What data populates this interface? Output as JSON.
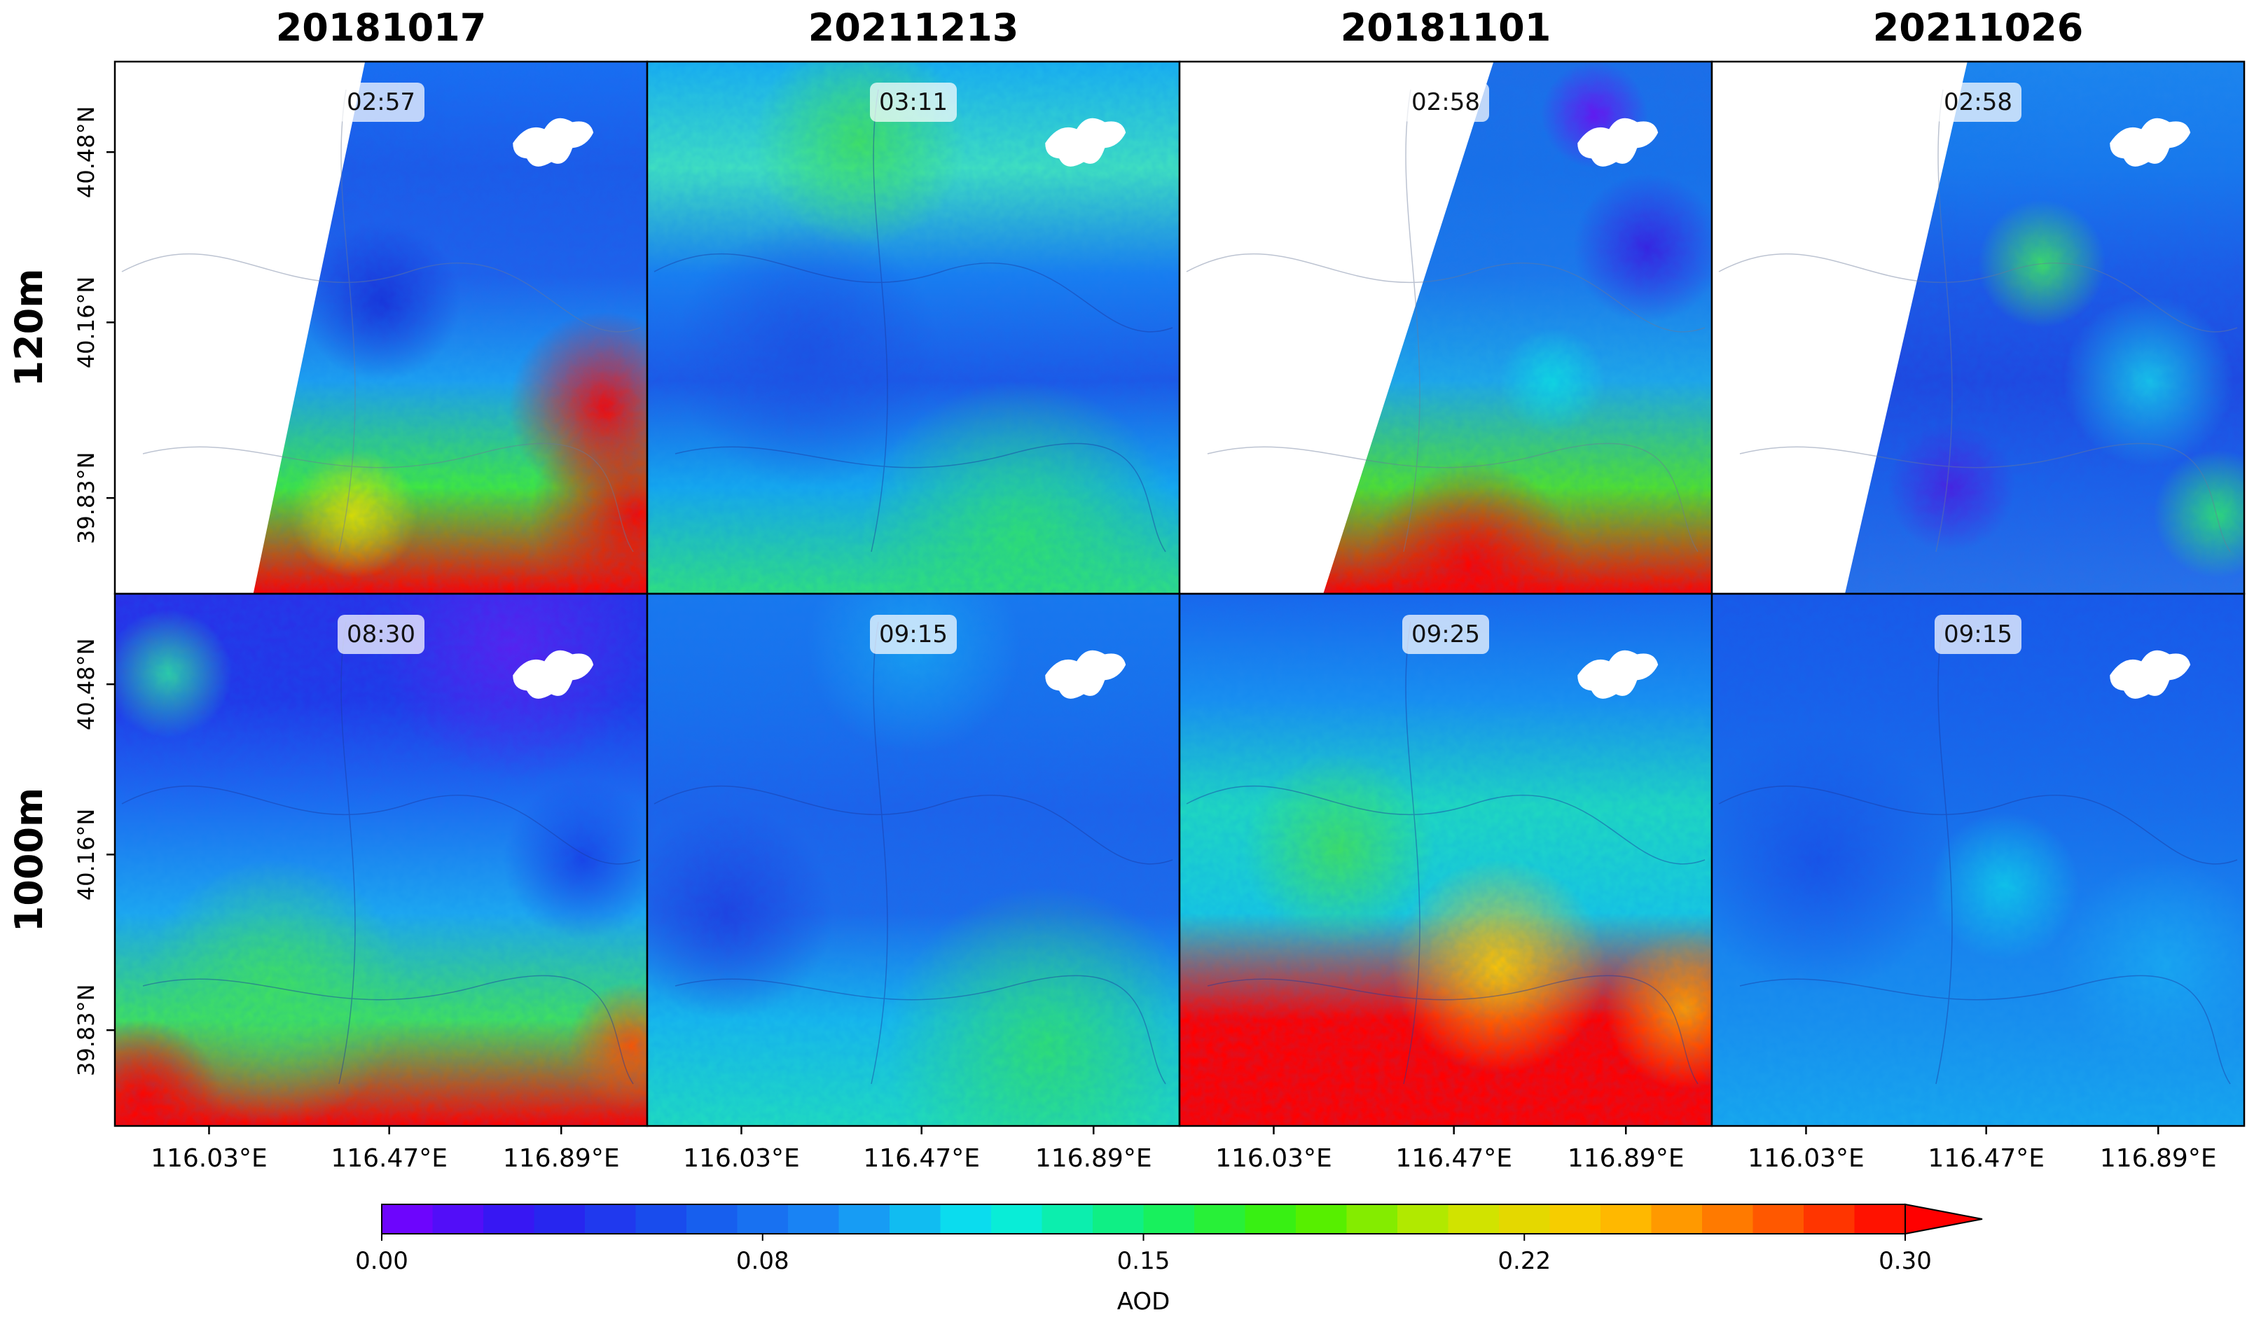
{
  "chart_data": {
    "type": "heatmap",
    "variable": "AOD",
    "columns": [
      "20181017",
      "20211213",
      "20181101",
      "20211026"
    ],
    "rows": [
      "120m",
      "1000m"
    ],
    "time_labels": [
      [
        "02:57",
        "03:11",
        "02:58",
        "02:58"
      ],
      [
        "08:30",
        "09:15",
        "09:25",
        "09:15"
      ]
    ],
    "lon_ticks": [
      "116.03°E",
      "116.47°E",
      "116.89°E"
    ],
    "lon_tick_values": [
      116.03,
      116.47,
      116.89
    ],
    "lat_ticks": [
      "40.48°N",
      "40.16°N",
      "39.83°N"
    ],
    "lat_tick_values": [
      40.48,
      40.16,
      39.83
    ],
    "lon_range": [
      115.8,
      117.1
    ],
    "lat_range": [
      39.65,
      40.65
    ],
    "colorbar": {
      "label": "AOD",
      "range": [
        0.0,
        0.3
      ],
      "extend": "max",
      "tick_values": [
        0.0,
        0.075,
        0.15,
        0.225,
        0.3
      ],
      "tick_labels": [
        "0.00",
        "0.08",
        "0.15",
        "0.22",
        "0.30"
      ],
      "stops": [
        "#7a00ff",
        "#2a1cf0",
        "#1656ec",
        "#1a8cf5",
        "#08ecec",
        "#10f070",
        "#40f000",
        "#c8e800",
        "#ffc800",
        "#ff6a00",
        "#ff0000"
      ]
    },
    "panels": [
      {
        "row": 0,
        "col": 0,
        "swath": [
          [
            0.47,
            0
          ],
          [
            1,
            0
          ],
          [
            1,
            1
          ],
          [
            0.26,
            1
          ]
        ],
        "grad": [
          "#1a6ef2",
          "#1e5ae8",
          "#2060ea",
          "#1ea0f0",
          "#40e840",
          "#ff0000"
        ],
        "blobs": [
          {
            "x": 0.5,
            "y": 0.45,
            "r": 0.15,
            "c": "#1a30d8"
          },
          {
            "x": 0.92,
            "y": 0.65,
            "r": 0.18,
            "c": "#ff0000"
          },
          {
            "x": 0.98,
            "y": 0.85,
            "r": 0.2,
            "c": "#ff0000"
          },
          {
            "x": 0.45,
            "y": 0.85,
            "r": 0.12,
            "c": "#e0e000"
          }
        ]
      },
      {
        "row": 0,
        "col": 1,
        "swath": null,
        "grad": [
          "#1ab0f0",
          "#40e0c0",
          "#1a7ef0",
          "#1e58e6",
          "#16a8ee",
          "#30e080"
        ],
        "blobs": [
          {
            "x": 0.4,
            "y": 0.15,
            "r": 0.2,
            "c": "#40e060"
          },
          {
            "x": 0.3,
            "y": 0.55,
            "r": 0.25,
            "c": "#1e50e2"
          },
          {
            "x": 0.7,
            "y": 0.9,
            "r": 0.3,
            "c": "#30e070"
          }
        ]
      },
      {
        "row": 0,
        "col": 2,
        "swath": [
          [
            0.59,
            0
          ],
          [
            1,
            0
          ],
          [
            1,
            1
          ],
          [
            0.27,
            1
          ]
        ],
        "grad": [
          "#1e6ee8",
          "#1a70e8",
          "#1e78ea",
          "#20a8e8",
          "#50e030",
          "#ff0000"
        ],
        "blobs": [
          {
            "x": 0.88,
            "y": 0.35,
            "r": 0.14,
            "c": "#3a1ee0"
          },
          {
            "x": 0.78,
            "y": 0.1,
            "r": 0.1,
            "c": "#6a10f0"
          },
          {
            "x": 0.7,
            "y": 0.6,
            "r": 0.1,
            "c": "#10d8e0"
          },
          {
            "x": 0.55,
            "y": 0.95,
            "r": 0.2,
            "c": "#ff0000"
          }
        ]
      },
      {
        "row": 0,
        "col": 3,
        "swath": [
          [
            0.48,
            0
          ],
          [
            1,
            0
          ],
          [
            1,
            1
          ],
          [
            0.25,
            1
          ]
        ],
        "grad": [
          "#1e86ee",
          "#1a78ec",
          "#1e5ae6",
          "#2048e0",
          "#1e60e8",
          "#2a70e8"
        ],
        "blobs": [
          {
            "x": 0.62,
            "y": 0.38,
            "r": 0.12,
            "c": "#40e060"
          },
          {
            "x": 0.82,
            "y": 0.6,
            "r": 0.16,
            "c": "#18c8e8"
          },
          {
            "x": 0.95,
            "y": 0.85,
            "r": 0.12,
            "c": "#30e070"
          },
          {
            "x": 0.45,
            "y": 0.8,
            "r": 0.12,
            "c": "#4a20e0"
          }
        ]
      },
      {
        "row": 1,
        "col": 0,
        "swath": null,
        "grad": [
          "#2a30e8",
          "#2238e8",
          "#1e6ef0",
          "#1ea8f0",
          "#40e060",
          "#ff0000"
        ],
        "blobs": [
          {
            "x": 0.75,
            "y": 0.1,
            "r": 0.25,
            "c": "#5a20f0"
          },
          {
            "x": 0.1,
            "y": 0.15,
            "r": 0.12,
            "c": "#30d8a0"
          },
          {
            "x": 0.3,
            "y": 0.75,
            "r": 0.25,
            "c": "#40e060"
          },
          {
            "x": 0.88,
            "y": 0.5,
            "r": 0.15,
            "c": "#1a40e6"
          },
          {
            "x": 0.05,
            "y": 0.95,
            "r": 0.15,
            "c": "#ff0000"
          },
          {
            "x": 0.97,
            "y": 0.85,
            "r": 0.12,
            "c": "#ff5000"
          }
        ]
      },
      {
        "row": 1,
        "col": 1,
        "swath": null,
        "grad": [
          "#1a78ee",
          "#1a70ec",
          "#1e62ea",
          "#1e6aea",
          "#18b8ec",
          "#20dcc0"
        ],
        "blobs": [
          {
            "x": 0.15,
            "y": 0.6,
            "r": 0.2,
            "c": "#2040e0"
          },
          {
            "x": 0.75,
            "y": 0.85,
            "r": 0.3,
            "c": "#30e070"
          },
          {
            "x": 0.5,
            "y": 0.1,
            "r": 0.2,
            "c": "#18a0f0"
          }
        ]
      },
      {
        "row": 1,
        "col": 2,
        "swath": null,
        "grad": [
          "#1a66ec",
          "#1a90f0",
          "#20d8c0",
          "#18c8e0",
          "#ff0000",
          "#ff0000"
        ],
        "blobs": [
          {
            "x": 0.3,
            "y": 0.48,
            "r": 0.18,
            "c": "#40e060"
          },
          {
            "x": 0.6,
            "y": 0.7,
            "r": 0.2,
            "c": "#ffc800"
          },
          {
            "x": 0.95,
            "y": 0.78,
            "r": 0.15,
            "c": "#ffa000"
          }
        ]
      },
      {
        "row": 1,
        "col": 3,
        "swath": null,
        "grad": [
          "#1a58e8",
          "#1a60ea",
          "#1a6cea",
          "#1a80ee",
          "#1a90ee",
          "#18a8ee"
        ],
        "blobs": [
          {
            "x": 0.55,
            "y": 0.55,
            "r": 0.14,
            "c": "#10c8e8"
          },
          {
            "x": 0.85,
            "y": 0.7,
            "r": 0.2,
            "c": "#1aa8f0"
          },
          {
            "x": 0.2,
            "y": 0.5,
            "r": 0.25,
            "c": "#1a50e6"
          }
        ]
      }
    ]
  }
}
